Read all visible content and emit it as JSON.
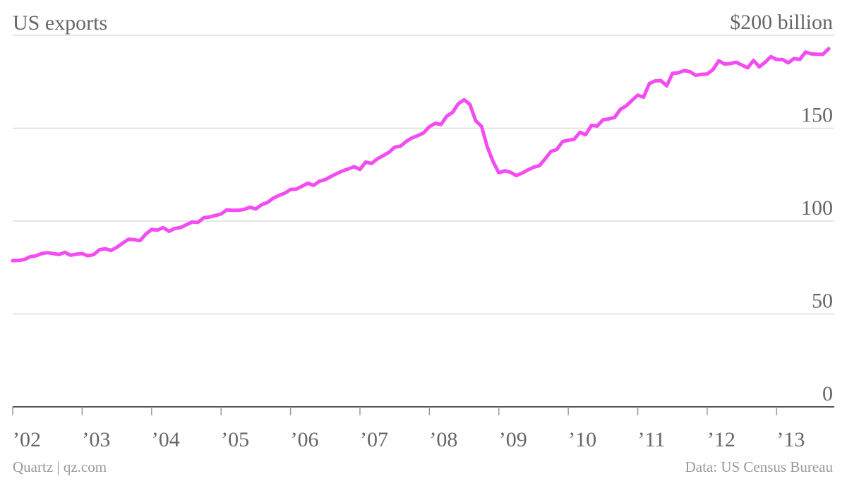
{
  "chart_data": {
    "type": "line",
    "title": "US exports",
    "x": [
      2002.0,
      2002.083,
      2002.167,
      2002.25,
      2002.333,
      2002.417,
      2002.5,
      2002.583,
      2002.667,
      2002.75,
      2002.833,
      2002.917,
      2003.0,
      2003.083,
      2003.167,
      2003.25,
      2003.333,
      2003.417,
      2003.5,
      2003.583,
      2003.667,
      2003.75,
      2003.833,
      2003.917,
      2004.0,
      2004.083,
      2004.167,
      2004.25,
      2004.333,
      2004.417,
      2004.5,
      2004.583,
      2004.667,
      2004.75,
      2004.833,
      2004.917,
      2005.0,
      2005.083,
      2005.167,
      2005.25,
      2005.333,
      2005.417,
      2005.5,
      2005.583,
      2005.667,
      2005.75,
      2005.833,
      2005.917,
      2006.0,
      2006.083,
      2006.167,
      2006.25,
      2006.333,
      2006.417,
      2006.5,
      2006.583,
      2006.667,
      2006.75,
      2006.833,
      2006.917,
      2007.0,
      2007.083,
      2007.167,
      2007.25,
      2007.333,
      2007.417,
      2007.5,
      2007.583,
      2007.667,
      2007.75,
      2007.833,
      2007.917,
      2008.0,
      2008.083,
      2008.167,
      2008.25,
      2008.333,
      2008.417,
      2008.5,
      2008.583,
      2008.667,
      2008.75,
      2008.833,
      2008.917,
      2009.0,
      2009.083,
      2009.167,
      2009.25,
      2009.333,
      2009.417,
      2009.5,
      2009.583,
      2009.667,
      2009.75,
      2009.833,
      2009.917,
      2010.0,
      2010.083,
      2010.167,
      2010.25,
      2010.333,
      2010.417,
      2010.5,
      2010.583,
      2010.667,
      2010.75,
      2010.833,
      2010.917,
      2011.0,
      2011.083,
      2011.167,
      2011.25,
      2011.333,
      2011.417,
      2011.5,
      2011.583,
      2011.667,
      2011.75,
      2011.833,
      2011.917,
      2012.0,
      2012.083,
      2012.167,
      2012.25,
      2012.333,
      2012.417,
      2012.5,
      2012.583,
      2012.667,
      2012.75,
      2012.833,
      2012.917,
      2013.0,
      2013.083,
      2013.167,
      2013.25,
      2013.333,
      2013.417,
      2013.5,
      2013.583,
      2013.667,
      2013.75
    ],
    "series": [
      {
        "color": "#f24cf2",
        "values": [
          78.7,
          78.8,
          79.3,
          80.8,
          81.3,
          82.5,
          83.0,
          82.5,
          82.0,
          83.2,
          81.6,
          82.2,
          82.5,
          81.3,
          82.0,
          84.6,
          85.1,
          84.2,
          85.9,
          88.1,
          90.2,
          90.0,
          89.5,
          93.0,
          95.5,
          95.1,
          96.5,
          94.5,
          96.0,
          96.5,
          98.0,
          99.5,
          99.3,
          101.8,
          102.2,
          103.0,
          103.8,
          106.0,
          105.8,
          105.8,
          106.3,
          107.5,
          106.5,
          108.8,
          110.0,
          112.3,
          113.8,
          115.0,
          117.0,
          117.2,
          118.8,
          120.4,
          119.2,
          121.5,
          122.3,
          124.0,
          125.6,
          127.0,
          128.1,
          129.3,
          127.8,
          131.8,
          131.0,
          133.5,
          135.2,
          137.0,
          139.8,
          140.3,
          142.9,
          144.8,
          146.0,
          147.5,
          150.8,
          152.6,
          152.0,
          156.5,
          158.5,
          163.2,
          165.3,
          162.8,
          154.0,
          151.0,
          140.0,
          132.0,
          126.0,
          127.0,
          126.3,
          124.5,
          125.8,
          127.5,
          129.0,
          129.8,
          133.5,
          137.5,
          138.5,
          142.8,
          143.5,
          144.0,
          147.8,
          146.5,
          151.5,
          151.2,
          154.5,
          155.0,
          155.8,
          160.2,
          162.0,
          165.0,
          167.8,
          166.7,
          174.0,
          175.5,
          175.6,
          172.8,
          179.5,
          179.8,
          181.0,
          180.5,
          178.5,
          179.0,
          179.2,
          181.5,
          186.3,
          184.5,
          184.8,
          185.5,
          184.0,
          182.5,
          186.5,
          183.0,
          185.5,
          188.5,
          187.0,
          187.0,
          185.2,
          187.5,
          187.0,
          191.0,
          190.0,
          189.8,
          189.8,
          192.8
        ]
      }
    ],
    "xlim": [
      2002,
      2013.83
    ],
    "xticks": [
      {
        "value": 2002,
        "label": "’02"
      },
      {
        "value": 2003,
        "label": "’03"
      },
      {
        "value": 2004,
        "label": "’04"
      },
      {
        "value": 2005,
        "label": "’05"
      },
      {
        "value": 2006,
        "label": "’06"
      },
      {
        "value": 2007,
        "label": "’07"
      },
      {
        "value": 2008,
        "label": "’08"
      },
      {
        "value": 2009,
        "label": "’09"
      },
      {
        "value": 2010,
        "label": "’10"
      },
      {
        "value": 2011,
        "label": "’11"
      },
      {
        "value": 2012,
        "label": "’12"
      },
      {
        "value": 2013,
        "label": "’13"
      }
    ],
    "ylim": [
      0,
      200
    ],
    "yticks": [
      0,
      50,
      100,
      150,
      {
        "value": 200,
        "label": "$200 billion"
      }
    ],
    "grid": true,
    "source_left": "Quartz | qz.com",
    "source_right": "Data: US Census Bureau"
  }
}
